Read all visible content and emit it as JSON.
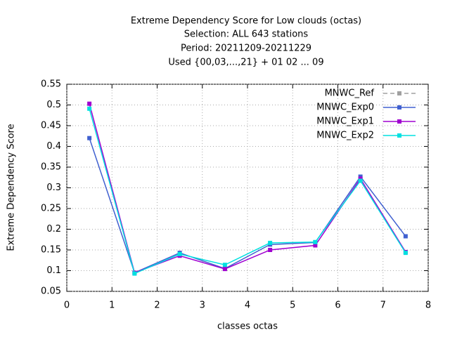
{
  "chart_data": {
    "type": "line",
    "title": [
      "Extreme Dependency Score  for Low clouds (octas)",
      "Selection: ALL    643 stations",
      "Period: 20211209-20211229",
      "Used {00,03,...,21} + 01 02 ... 09"
    ],
    "x_label": "classes octas",
    "y_label": "Extreme Dependency Score",
    "x": [
      0.5,
      1.5,
      2.5,
      3.5,
      4.5,
      5.5,
      6.5,
      7.5
    ],
    "series": [
      {
        "name": "MNWC_Ref",
        "color": "#a0a0a0",
        "dashed": true,
        "values": [
          null,
          null,
          null,
          null,
          null,
          null,
          null,
          null
        ]
      },
      {
        "name": "MNWC_Exp0",
        "color": "#4060d0",
        "values": [
          0.42,
          0.095,
          0.143,
          0.105,
          0.163,
          0.168,
          0.327,
          0.183
        ]
      },
      {
        "name": "MNWC_Exp1",
        "color": "#a000d0",
        "values": [
          0.503,
          0.095,
          0.136,
          0.104,
          0.15,
          0.161,
          0.322,
          0.145
        ]
      },
      {
        "name": "MNWC_Exp2",
        "color": "#00e0e0",
        "values": [
          0.491,
          0.093,
          0.14,
          0.114,
          0.167,
          0.169,
          0.317,
          0.143
        ]
      }
    ],
    "xlim": [
      0,
      8
    ],
    "xticks": [
      0,
      1,
      2,
      3,
      4,
      5,
      6,
      7,
      8
    ],
    "ylim": [
      0.05,
      0.55
    ],
    "yticks": [
      0.05,
      0.1,
      0.15,
      0.2,
      0.25,
      0.3,
      0.35,
      0.4,
      0.45,
      0.5,
      0.55
    ],
    "grid": true,
    "legend": "top-right"
  }
}
